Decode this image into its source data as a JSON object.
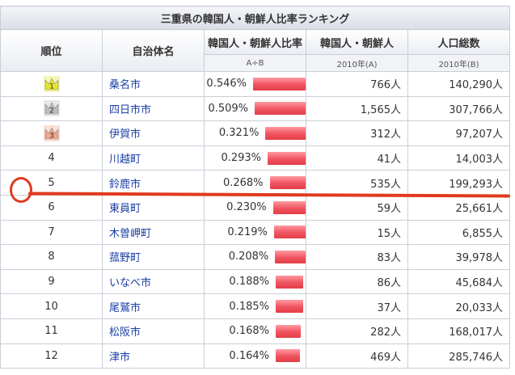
{
  "table": {
    "title": "三重県の韓国人・朝鮮人比率ランキング",
    "headers": {
      "rank": "順位",
      "name": "自治体名",
      "ratio": "韓国人・朝鮮人比率",
      "korean": "韓国人・朝鮮人",
      "population": "人口総数"
    },
    "subheaders": {
      "ratio": "A÷B",
      "korean": "2010年(A)",
      "population": "2010年(B)"
    },
    "rows": [
      {
        "rank": "1",
        "name": "桑名市",
        "ratio": "0.546%",
        "ratio_value": 0.546,
        "korean": "766人",
        "population": "140,290人",
        "crown": "gold"
      },
      {
        "rank": "2",
        "name": "四日市市",
        "ratio": "0.509%",
        "ratio_value": 0.509,
        "korean": "1,565人",
        "population": "307,766人",
        "crown": "silver"
      },
      {
        "rank": "3",
        "name": "伊賀市",
        "ratio": "0.321%",
        "ratio_value": 0.321,
        "korean": "312人",
        "population": "97,207人",
        "crown": "bronze"
      },
      {
        "rank": "4",
        "name": "川越町",
        "ratio": "0.293%",
        "ratio_value": 0.293,
        "korean": "41人",
        "population": "14,003人"
      },
      {
        "rank": "5",
        "name": "鈴鹿市",
        "ratio": "0.268%",
        "ratio_value": 0.268,
        "korean": "535人",
        "population": "199,293人"
      },
      {
        "rank": "6",
        "name": "東員町",
        "ratio": "0.230%",
        "ratio_value": 0.23,
        "korean": "59人",
        "population": "25,661人"
      },
      {
        "rank": "7",
        "name": "木曽岬町",
        "ratio": "0.219%",
        "ratio_value": 0.219,
        "korean": "15人",
        "population": "6,855人"
      },
      {
        "rank": "8",
        "name": "菰野町",
        "ratio": "0.208%",
        "ratio_value": 0.208,
        "korean": "83人",
        "population": "39,978人"
      },
      {
        "rank": "9",
        "name": "いなべ市",
        "ratio": "0.188%",
        "ratio_value": 0.188,
        "korean": "86人",
        "population": "45,684人"
      },
      {
        "rank": "10",
        "name": "尾鷲市",
        "ratio": "0.185%",
        "ratio_value": 0.185,
        "korean": "37人",
        "population": "20,033人"
      },
      {
        "rank": "11",
        "name": "松阪市",
        "ratio": "0.168%",
        "ratio_value": 0.168,
        "korean": "282人",
        "population": "168,017人"
      },
      {
        "rank": "12",
        "name": "津市",
        "ratio": "0.164%",
        "ratio_value": 0.164,
        "korean": "469人",
        "population": "285,746人"
      }
    ]
  },
  "colors": {
    "bar": "#f0545f",
    "link": "#1a3fa6",
    "annotation": "#e03a1e",
    "gold": "#e6e62a",
    "silver": "#bdbdbd",
    "bronze": "#f2a38a"
  },
  "icons": {
    "crown": "crown-icon"
  }
}
